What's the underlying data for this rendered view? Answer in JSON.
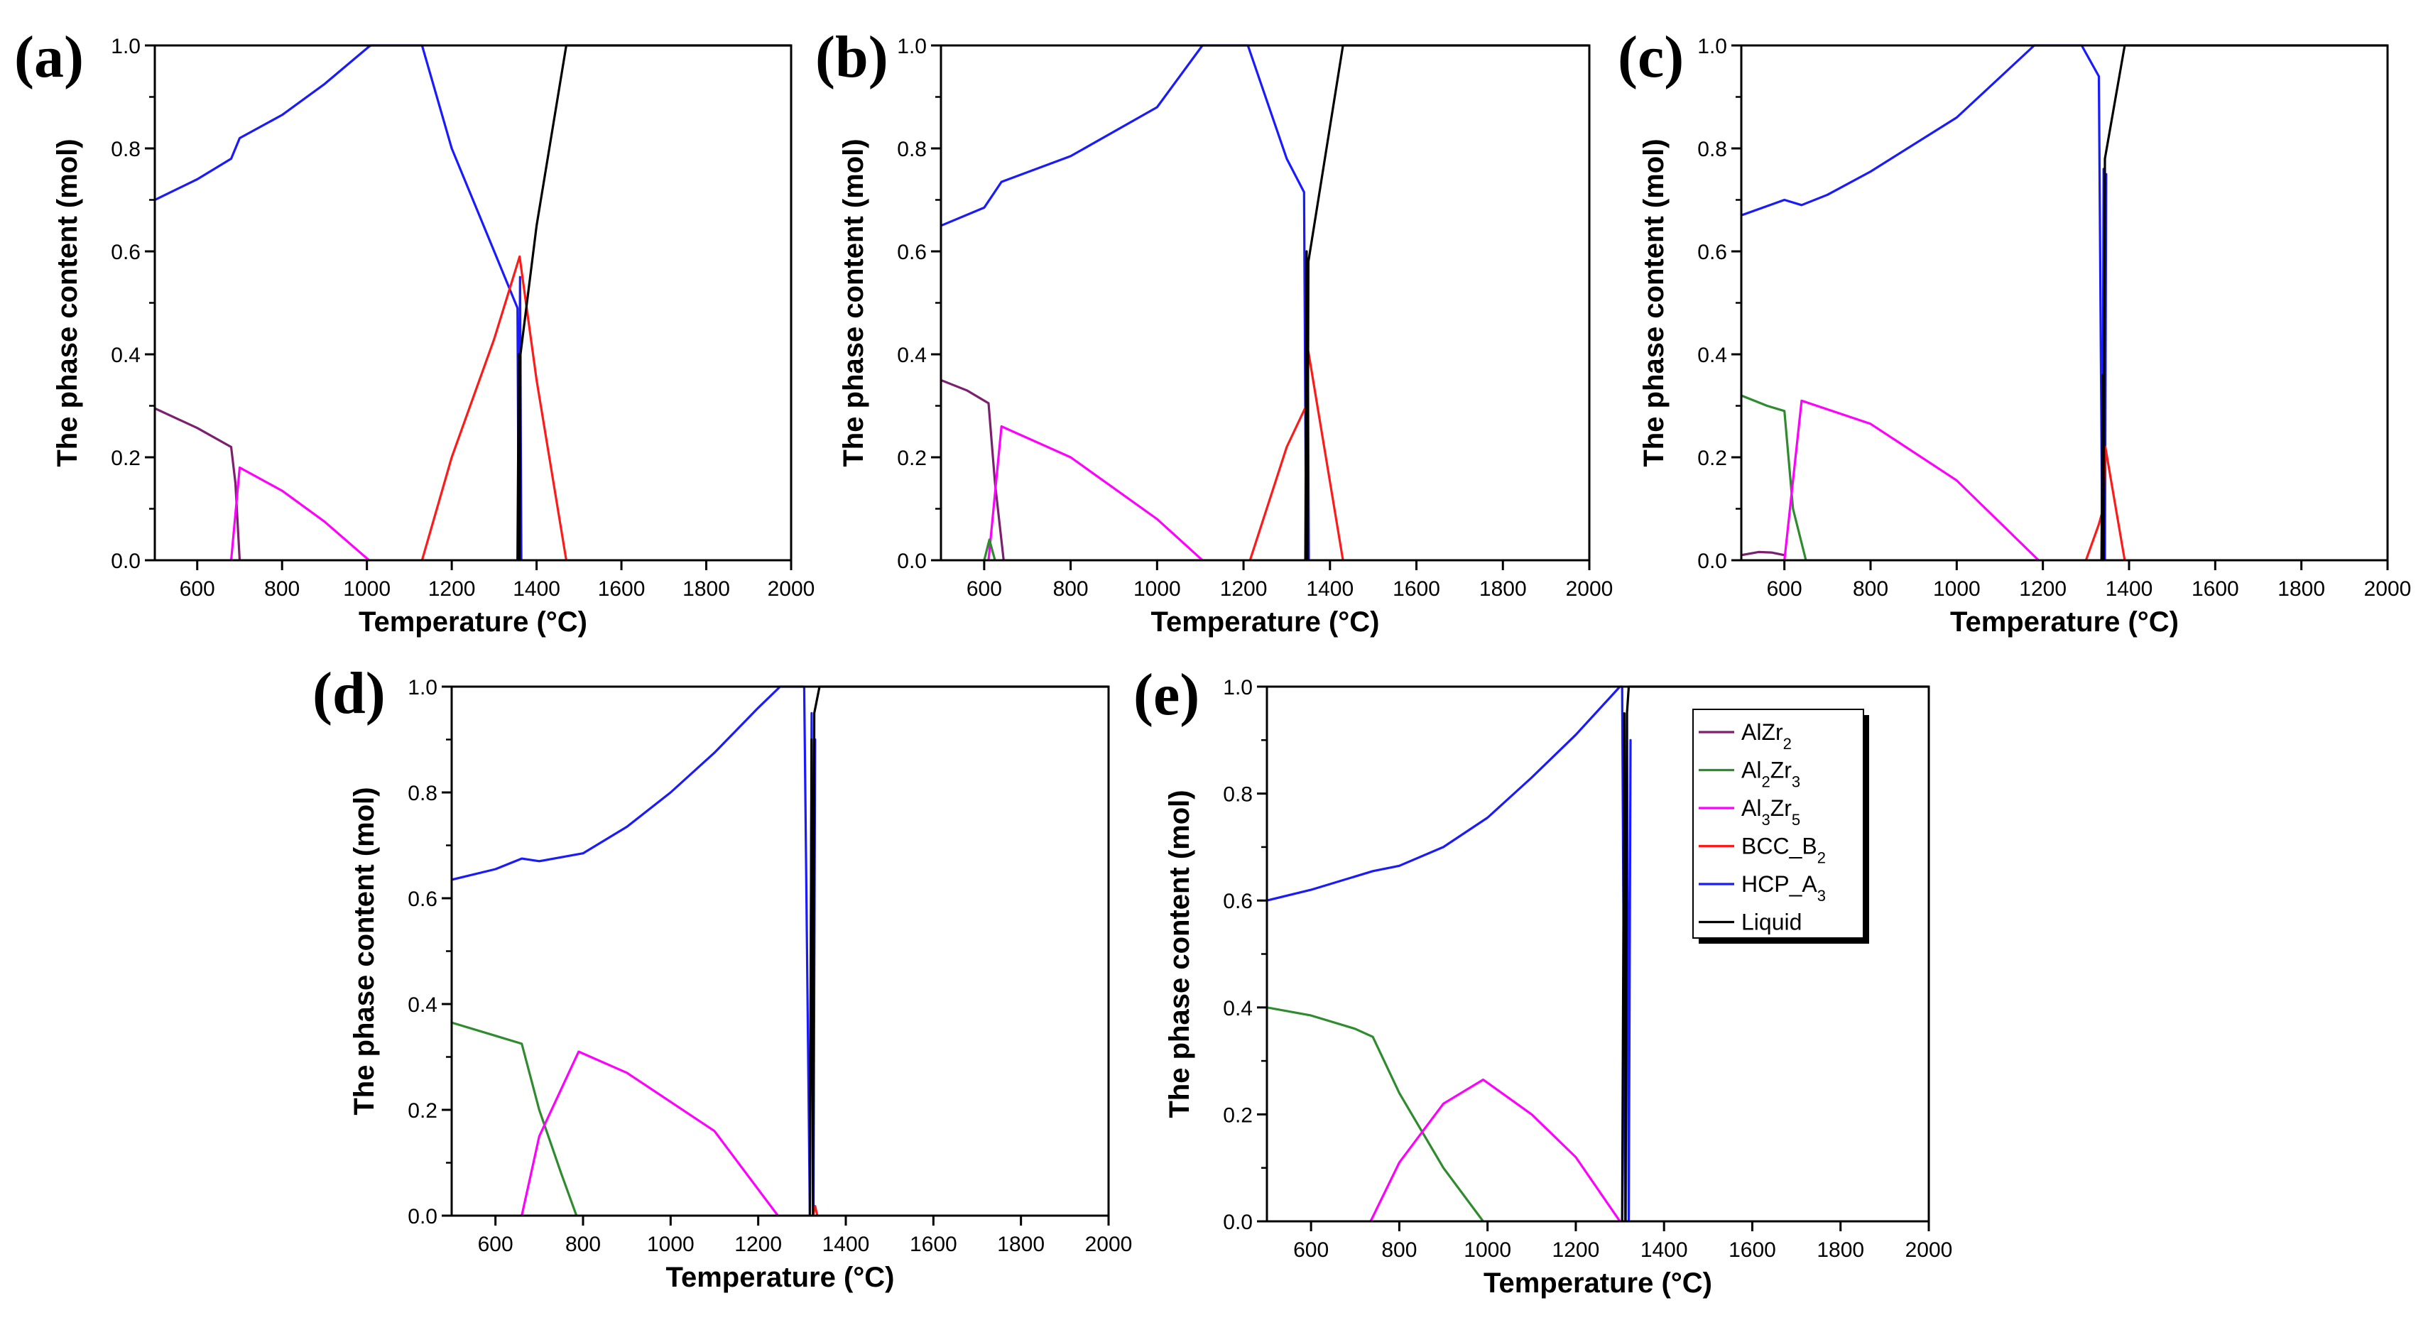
{
  "figure_colors": {
    "AlZr2": "#7b1f6e",
    "Al2Zr3": "#2e8b2e",
    "Al3Zr5": "#ff00ff",
    "BCC_B2": "#ff1a1a",
    "HCP_A3": "#1a1aff",
    "Liquid": "#000000"
  },
  "legend": {
    "entries": [
      {
        "key": "AlZr2",
        "base": "AlZr",
        "sub1": "2",
        "mid": "",
        "sub2": ""
      },
      {
        "key": "Al2Zr3",
        "base": "Al",
        "sub1": "2",
        "mid": "Zr",
        "sub2": "3"
      },
      {
        "key": "Al3Zr5",
        "base": "Al",
        "sub1": "3",
        "mid": "Zr",
        "sub2": "5"
      },
      {
        "key": "BCC_B2",
        "base": "BCC_B",
        "sub1": "2",
        "mid": "",
        "sub2": ""
      },
      {
        "key": "HCP_A3",
        "base": "HCP_A",
        "sub1": "3",
        "mid": "",
        "sub2": ""
      },
      {
        "key": "Liquid",
        "base": "Liquid",
        "sub1": "",
        "mid": "",
        "sub2": ""
      }
    ]
  },
  "chart_data": [
    {
      "type": "line",
      "panel_label": "(a)",
      "xlabel": "Temperature (°C)",
      "ylabel": "The phase content (mol)",
      "xlim": [
        500,
        2000
      ],
      "ylim": [
        0,
        1
      ],
      "xticks": [
        600,
        800,
        1000,
        1200,
        1400,
        1600,
        1800,
        2000
      ],
      "yticks": [
        "0.0",
        "0.2",
        "0.4",
        "0.6",
        "0.8",
        "1.0"
      ],
      "series": [
        {
          "name": "AlZr2",
          "x": [
            500,
            600,
            680,
            690,
            700
          ],
          "y": [
            0.295,
            0.257,
            0.22,
            0.15,
            0.0
          ]
        },
        {
          "name": "Al3Zr5",
          "x": [
            680,
            700,
            800,
            900,
            1005
          ],
          "y": [
            0.0,
            0.18,
            0.135,
            0.075,
            0.0
          ]
        },
        {
          "name": "HCP_A3",
          "x": [
            500,
            600,
            680,
            700,
            800,
            900,
            1005,
            1010,
            1130,
            1200,
            1300,
            1355,
            1358,
            1361,
            1364
          ],
          "y": [
            0.7,
            0.74,
            0.78,
            0.82,
            0.865,
            0.925,
            0.998,
            1.0,
            1.0,
            0.8,
            0.6,
            0.49,
            0.0,
            0.55,
            0.0
          ]
        },
        {
          "name": "BCC_B2",
          "x": [
            1130,
            1200,
            1300,
            1360,
            1400,
            1470
          ],
          "y": [
            0.0,
            0.2,
            0.43,
            0.59,
            0.35,
            0.0
          ]
        },
        {
          "name": "Liquid",
          "x": [
            1355,
            1358,
            1360,
            1362,
            1400,
            1470,
            1500,
            2000
          ],
          "y": [
            0.0,
            0.4,
            0.0,
            0.4,
            0.65,
            1.0,
            1.0,
            1.0
          ]
        }
      ]
    },
    {
      "type": "line",
      "panel_label": "(b)",
      "xlabel": "Temperature (°C)",
      "ylabel": "The phase content (mol)",
      "xlim": [
        500,
        2000
      ],
      "ylim": [
        0,
        1
      ],
      "xticks": [
        600,
        800,
        1000,
        1200,
        1400,
        1600,
        1800,
        2000
      ],
      "yticks": [
        "0.0",
        "0.2",
        "0.4",
        "0.6",
        "0.8",
        "1.0"
      ],
      "series": [
        {
          "name": "AlZr2",
          "x": [
            500,
            560,
            610,
            625,
            645
          ],
          "y": [
            0.35,
            0.33,
            0.305,
            0.15,
            0.0
          ]
        },
        {
          "name": "Al3Zr5",
          "x": [
            610,
            640,
            800,
            1000,
            1105
          ],
          "y": [
            0.0,
            0.26,
            0.2,
            0.08,
            0.0
          ]
        },
        {
          "name": "Al2Zr3",
          "x": [
            600,
            612,
            625
          ],
          "y": [
            0.0,
            0.04,
            0.0
          ]
        },
        {
          "name": "HCP_A3",
          "x": [
            500,
            600,
            640,
            800,
            1000,
            1105,
            1210,
            1300,
            1340,
            1345,
            1348,
            1351
          ],
          "y": [
            0.65,
            0.685,
            0.735,
            0.785,
            0.88,
            1.0,
            1.0,
            0.78,
            0.715,
            0.0,
            0.58,
            0.0
          ]
        },
        {
          "name": "BCC_B2",
          "x": [
            1215,
            1300,
            1345,
            1350,
            1430
          ],
          "y": [
            0.0,
            0.22,
            0.3,
            0.405,
            0.0
          ]
        },
        {
          "name": "Liquid",
          "x": [
            1343,
            1346,
            1348,
            1350,
            1430,
            1460,
            2000
          ],
          "y": [
            0.0,
            0.6,
            0.0,
            0.58,
            1.0,
            1.0,
            1.0
          ]
        }
      ]
    },
    {
      "type": "line",
      "panel_label": "(c)",
      "xlabel": "Temperature (°C)",
      "ylabel": "The phase content (mol)",
      "xlim": [
        500,
        2000
      ],
      "ylim": [
        0,
        1
      ],
      "xticks": [
        600,
        800,
        1000,
        1200,
        1400,
        1600,
        1800,
        2000
      ],
      "yticks": [
        "0.0",
        "0.2",
        "0.4",
        "0.6",
        "0.8",
        "1.0"
      ],
      "series": [
        {
          "name": "AlZr2",
          "x": [
            500,
            540,
            570,
            600
          ],
          "y": [
            0.01,
            0.016,
            0.015,
            0.01
          ]
        },
        {
          "name": "Al2Zr3",
          "x": [
            500,
            560,
            600,
            620,
            650
          ],
          "y": [
            0.32,
            0.3,
            0.29,
            0.1,
            0.0
          ]
        },
        {
          "name": "Al3Zr5",
          "x": [
            600,
            640,
            800,
            1000,
            1190
          ],
          "y": [
            0.0,
            0.31,
            0.265,
            0.155,
            0.0
          ]
        },
        {
          "name": "HCP_A3",
          "x": [
            500,
            600,
            640,
            700,
            800,
            1000,
            1180,
            1290,
            1330,
            1338,
            1341,
            1344,
            1347
          ],
          "y": [
            0.67,
            0.7,
            0.69,
            0.71,
            0.755,
            0.86,
            1.0,
            1.0,
            0.94,
            0.0,
            0.76,
            0.0,
            0.75
          ]
        },
        {
          "name": "BCC_B2",
          "x": [
            1300,
            1330,
            1340,
            1345,
            1390
          ],
          "y": [
            0.0,
            0.07,
            0.1,
            0.22,
            0.0
          ]
        },
        {
          "name": "Liquid",
          "x": [
            1336,
            1339,
            1341,
            1344,
            1390,
            1410,
            2000
          ],
          "y": [
            0.0,
            0.36,
            0.0,
            0.78,
            1.0,
            1.0,
            1.0
          ]
        }
      ]
    },
    {
      "type": "line",
      "panel_label": "(d)",
      "xlabel": "Temperature (°C)",
      "ylabel": "The phase content (mol)",
      "xlim": [
        500,
        2000
      ],
      "ylim": [
        0,
        1
      ],
      "xticks": [
        600,
        800,
        1000,
        1200,
        1400,
        1600,
        1800,
        2000
      ],
      "yticks": [
        "0.0",
        "0.2",
        "0.4",
        "0.6",
        "0.8",
        "1.0"
      ],
      "series": [
        {
          "name": "Al2Zr3",
          "x": [
            500,
            600,
            660,
            700,
            750,
            785
          ],
          "y": [
            0.365,
            0.34,
            0.325,
            0.2,
            0.08,
            0.0
          ]
        },
        {
          "name": "Al3Zr5",
          "x": [
            660,
            700,
            790,
            900,
            1100,
            1245
          ],
          "y": [
            0.0,
            0.15,
            0.31,
            0.27,
            0.16,
            0.0
          ]
        },
        {
          "name": "HCP_A3",
          "x": [
            500,
            600,
            660,
            700,
            800,
            900,
            1000,
            1100,
            1200,
            1250,
            1305,
            1318,
            1322,
            1326,
            1330
          ],
          "y": [
            0.635,
            0.655,
            0.675,
            0.67,
            0.685,
            0.735,
            0.8,
            0.875,
            0.96,
            1.0,
            1.0,
            0.0,
            0.95,
            0.0,
            0.9
          ]
        },
        {
          "name": "BCC_B2",
          "x": [
            1325,
            1330,
            1335
          ],
          "y": [
            0.0,
            0.018,
            0.0
          ]
        },
        {
          "name": "Liquid",
          "x": [
            1318,
            1322,
            1325,
            1328,
            1340,
            1360,
            2000
          ],
          "y": [
            0.0,
            0.9,
            0.0,
            0.95,
            1.0,
            1.0,
            1.0
          ]
        }
      ]
    },
    {
      "type": "line",
      "panel_label": "(e)",
      "xlabel": "Temperature (°C)",
      "ylabel": "The phase content (mol)",
      "xlim": [
        500,
        2000
      ],
      "ylim": [
        0,
        1
      ],
      "xticks": [
        600,
        800,
        1000,
        1200,
        1400,
        1600,
        1800,
        2000
      ],
      "yticks": [
        "0.0",
        "0.2",
        "0.4",
        "0.6",
        "0.8",
        "1.0"
      ],
      "series": [
        {
          "name": "Al2Zr3",
          "x": [
            500,
            600,
            700,
            740,
            800,
            900,
            990
          ],
          "y": [
            0.4,
            0.385,
            0.36,
            0.345,
            0.24,
            0.1,
            0.0
          ]
        },
        {
          "name": "Al3Zr5",
          "x": [
            735,
            800,
            900,
            990,
            1100,
            1200,
            1300
          ],
          "y": [
            0.0,
            0.11,
            0.22,
            0.265,
            0.2,
            0.12,
            0.0
          ]
        },
        {
          "name": "HCP_A3",
          "x": [
            500,
            600,
            700,
            740,
            800,
            900,
            1000,
            1100,
            1200,
            1300,
            1305,
            1312,
            1316,
            1320,
            1324
          ],
          "y": [
            0.6,
            0.62,
            0.645,
            0.655,
            0.665,
            0.7,
            0.755,
            0.83,
            0.91,
            1.0,
            1.0,
            0.0,
            0.95,
            0.0,
            0.9
          ]
        },
        {
          "name": "Liquid",
          "x": [
            1305,
            1310,
            1313,
            1316,
            1320,
            1330,
            2000
          ],
          "y": [
            0.0,
            0.95,
            0.0,
            0.95,
            1.0,
            1.0,
            1.0
          ]
        }
      ]
    }
  ]
}
